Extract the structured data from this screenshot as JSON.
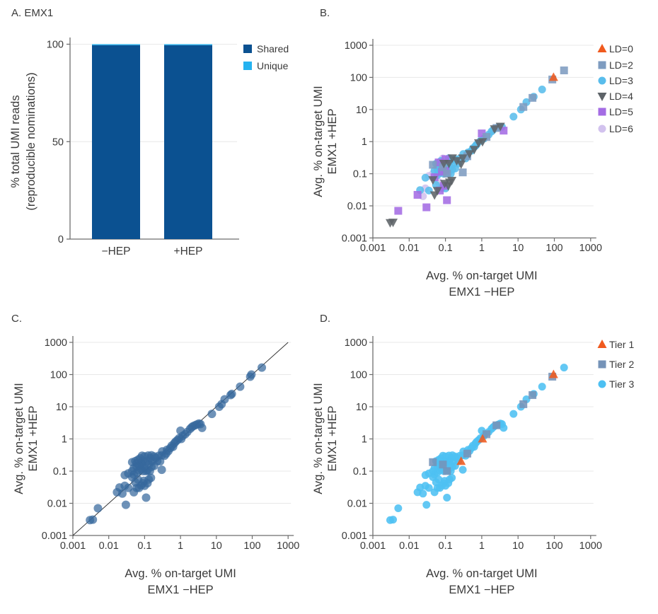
{
  "figure": {
    "panel_count": 4
  },
  "colors": {
    "shared": "#0b5191",
    "unique": "#25b2f0",
    "ld0": "#f05a1e",
    "ld2": "#7e9cc0",
    "ld3": "#59bdec",
    "ld4": "#5d6368",
    "ld5": "#a46ce4",
    "ld6": "#d2c2ee",
    "tier1": "#f05a1e",
    "tier2": "#7593b8",
    "tier3": "#4dc0f2",
    "panel_c_point": "#36689d",
    "axis": "#6e6e6e",
    "grid": "#e8e8e8",
    "text": "#3a3a3a"
  },
  "chart_data": [
    {
      "id": "A",
      "type": "bar",
      "title": "A. EMX1",
      "ylabel_lines": [
        "% total UMI reads",
        "(reproducible nominations)"
      ],
      "yticks": [
        0,
        50,
        100
      ],
      "ytick_labels": [
        "0",
        "50",
        "100"
      ],
      "ylim": [
        0,
        100
      ],
      "categories": [
        "−HEP",
        "+HEP"
      ],
      "stacked": true,
      "series": [
        {
          "name": "Shared",
          "color": "#0b5191",
          "values": [
            99.5,
            99.5
          ]
        },
        {
          "name": "Unique",
          "color": "#25b2f0",
          "values": [
            0.5,
            0.5
          ]
        }
      ],
      "legend": [
        {
          "label": "Shared",
          "key": "shared",
          "shape": "square",
          "color": "#0b5191"
        },
        {
          "label": "Unique",
          "key": "unique",
          "shape": "square",
          "color": "#25b2f0"
        }
      ]
    },
    {
      "id": "B",
      "type": "scatter",
      "title": "B.",
      "xlabel_lines": [
        "Avg. % on-target UMI",
        "EMX1 −HEP"
      ],
      "ylabel_lines": [
        "Avg. % on-target UMI",
        "EMX1 +HEP"
      ],
      "xscale": "log",
      "yscale": "log",
      "xlim": [
        0.001,
        1000
      ],
      "ylim": [
        0.001,
        1000
      ],
      "tick_labels": [
        "0.001",
        "0.01",
        "0.1",
        "1",
        "10",
        "100",
        "1000"
      ],
      "grid": "horizontal",
      "color_by": "ld",
      "marker_opacity": 0.88,
      "marker_map": {
        "0": {
          "shape": "triangle-up",
          "color": "#f05a1e"
        },
        "2": {
          "shape": "square",
          "color": "#7e9cc0"
        },
        "3": {
          "shape": "circle",
          "color": "#59bdec"
        },
        "4": {
          "shape": "triangle-down",
          "color": "#5d6368"
        },
        "5": {
          "shape": "square",
          "color": "#a46ce4"
        },
        "6": {
          "shape": "circle",
          "color": "#d2c2ee"
        }
      },
      "draw_order": [
        "6",
        "3",
        "5",
        "2",
        "4",
        "0"
      ],
      "legend": [
        {
          "label": "LD=0",
          "key": "0"
        },
        {
          "label": "LD=2",
          "key": "2"
        },
        {
          "label": "LD=3",
          "key": "3"
        },
        {
          "label": "LD=4",
          "key": "4"
        },
        {
          "label": "LD=5",
          "key": "5"
        },
        {
          "label": "LD=6",
          "key": "6"
        }
      ],
      "legend_position": "right",
      "identity_line": false
    },
    {
      "id": "C",
      "type": "scatter",
      "title": "C.",
      "xlabel_lines": [
        "Avg. % on-target UMI",
        "EMX1 −HEP"
      ],
      "ylabel_lines": [
        "Avg. % on-target UMI",
        "EMX1 +HEP"
      ],
      "xscale": "log",
      "yscale": "log",
      "xlim": [
        0.001,
        1000
      ],
      "ylim": [
        0.001,
        1000
      ],
      "tick_labels": [
        "0.001",
        "0.01",
        "0.1",
        "1",
        "10",
        "100",
        "1000"
      ],
      "grid": "horizontal",
      "color_by": null,
      "point_style": {
        "shape": "circle",
        "color": "#36689d",
        "opacity": 0.72
      },
      "identity_line": true
    },
    {
      "id": "D",
      "type": "scatter",
      "title": "D.",
      "xlabel_lines": [
        "Avg. % on-target UMI",
        "EMX1 −HEP"
      ],
      "ylabel_lines": [
        "Avg. % on-target UMI",
        "EMX1 +HEP"
      ],
      "xscale": "log",
      "yscale": "log",
      "xlim": [
        0.001,
        1000
      ],
      "ylim": [
        0.001,
        1000
      ],
      "tick_labels": [
        "0.001",
        "0.01",
        "0.1",
        "1",
        "10",
        "100",
        "1000"
      ],
      "grid": "horizontal",
      "color_by": "tier",
      "marker_opacity": 0.88,
      "marker_map": {
        "1": {
          "shape": "triangle-up",
          "color": "#f05a1e"
        },
        "2": {
          "shape": "square",
          "color": "#7593b8"
        },
        "3": {
          "shape": "circle",
          "color": "#4dc0f2"
        }
      },
      "draw_order": [
        "3",
        "2",
        "1"
      ],
      "legend": [
        {
          "label": "Tier 1",
          "key": "1"
        },
        {
          "label": "Tier 2",
          "key": "2"
        },
        {
          "label": "Tier 3",
          "key": "3"
        }
      ],
      "legend_position": "right",
      "identity_line": false
    }
  ],
  "scatter_points_format": [
    "x",
    "y",
    "ld",
    "tier"
  ],
  "scatter_points": [
    [
      0.003,
      0.003,
      4,
      3
    ],
    [
      0.0036,
      0.0031,
      4,
      3
    ],
    [
      0.005,
      0.007,
      5,
      3
    ],
    [
      0.03,
      0.009,
      5,
      3
    ],
    [
      0.11,
      0.015,
      5,
      3
    ],
    [
      0.017,
      0.022,
      5,
      3
    ],
    [
      0.024,
      0.02,
      6,
      3
    ],
    [
      0.02,
      0.031,
      3,
      3
    ],
    [
      0.028,
      0.035,
      6,
      3
    ],
    [
      0.035,
      0.03,
      3,
      3
    ],
    [
      0.05,
      0.022,
      4,
      3
    ],
    [
      0.06,
      0.03,
      4,
      3
    ],
    [
      0.07,
      0.03,
      5,
      3
    ],
    [
      0.08,
      0.036,
      3,
      3
    ],
    [
      0.09,
      0.042,
      5,
      3
    ],
    [
      0.1,
      0.035,
      3,
      3
    ],
    [
      0.12,
      0.042,
      4,
      3
    ],
    [
      0.095,
      0.05,
      4,
      3
    ],
    [
      0.055,
      0.045,
      3,
      3
    ],
    [
      0.065,
      0.055,
      6,
      3
    ],
    [
      0.13,
      0.055,
      4,
      3
    ],
    [
      0.15,
      0.062,
      4,
      3
    ],
    [
      0.045,
      0.065,
      4,
      3
    ],
    [
      0.05,
      0.078,
      5,
      3
    ],
    [
      0.028,
      0.075,
      3,
      3
    ],
    [
      0.035,
      0.085,
      6,
      3
    ],
    [
      0.06,
      0.09,
      3,
      3
    ],
    [
      0.07,
      0.105,
      3,
      3
    ],
    [
      0.045,
      0.1,
      6,
      3
    ],
    [
      0.05,
      0.125,
      3,
      3
    ],
    [
      0.08,
      0.115,
      5,
      3
    ],
    [
      0.09,
      0.1,
      3,
      3
    ],
    [
      0.11,
      0.1,
      2,
      2
    ],
    [
      0.12,
      0.105,
      3,
      3
    ],
    [
      0.14,
      0.1,
      3,
      3
    ],
    [
      0.1,
      0.125,
      5,
      3
    ],
    [
      0.045,
      0.19,
      2,
      2
    ],
    [
      0.06,
      0.175,
      3,
      3
    ],
    [
      0.085,
      0.16,
      2,
      2
    ],
    [
      0.06,
      0.14,
      3,
      3
    ],
    [
      0.07,
      0.15,
      6,
      3
    ],
    [
      0.08,
      0.175,
      3,
      3
    ],
    [
      0.055,
      0.205,
      3,
      3
    ],
    [
      0.065,
      0.225,
      5,
      3
    ],
    [
      0.075,
      0.25,
      3,
      3
    ],
    [
      0.09,
      0.21,
      4,
      3
    ],
    [
      0.105,
      0.185,
      3,
      3
    ],
    [
      0.085,
      0.3,
      6,
      3
    ],
    [
      0.1,
      0.285,
      5,
      3
    ],
    [
      0.125,
      0.21,
      4,
      3
    ],
    [
      0.135,
      0.165,
      3,
      3
    ],
    [
      0.155,
      0.135,
      3,
      3
    ],
    [
      0.185,
      0.145,
      3,
      3
    ],
    [
      0.165,
      0.205,
      3,
      3
    ],
    [
      0.145,
      0.255,
      3,
      3
    ],
    [
      0.125,
      0.305,
      3,
      3
    ],
    [
      0.155,
      0.31,
      4,
      3
    ],
    [
      0.185,
      0.285,
      3,
      3
    ],
    [
      0.205,
      0.255,
      4,
      3
    ],
    [
      0.225,
      0.205,
      3,
      3
    ],
    [
      0.3,
      0.11,
      2,
      3
    ],
    [
      0.27,
      0.2,
      4,
      1
    ],
    [
      0.25,
      0.3,
      3,
      3
    ],
    [
      0.3,
      0.31,
      4,
      3
    ],
    [
      0.36,
      0.3,
      3,
      3
    ],
    [
      0.31,
      0.41,
      3,
      3
    ],
    [
      0.4,
      0.35,
      2,
      2
    ],
    [
      0.42,
      0.46,
      3,
      3
    ],
    [
      0.46,
      0.42,
      4,
      3
    ],
    [
      0.52,
      0.52,
      3,
      3
    ],
    [
      0.57,
      0.62,
      3,
      3
    ],
    [
      0.62,
      0.57,
      4,
      3
    ],
    [
      0.67,
      0.73,
      3,
      3
    ],
    [
      0.73,
      0.82,
      3,
      3
    ],
    [
      0.82,
      0.92,
      4,
      3
    ],
    [
      0.92,
      1.05,
      3,
      3
    ],
    [
      1.05,
      1.0,
      4,
      1
    ],
    [
      1.15,
      1.25,
      3,
      3
    ],
    [
      1.35,
      1.4,
      2,
      2
    ],
    [
      1.0,
      1.8,
      5,
      3
    ],
    [
      1.55,
      1.65,
      3,
      3
    ],
    [
      1.85,
      2.05,
      3,
      3
    ],
    [
      2.05,
      2.3,
      3,
      3
    ],
    [
      2.25,
      2.5,
      4,
      3
    ],
    [
      2.55,
      2.65,
      2,
      2
    ],
    [
      2.85,
      2.8,
      3,
      3
    ],
    [
      3.25,
      3.0,
      4,
      3
    ],
    [
      4.0,
      2.2,
      5,
      3
    ],
    [
      3.6,
      2.9,
      3,
      3
    ],
    [
      7.5,
      6.0,
      3,
      3
    ],
    [
      12,
      10,
      3,
      3
    ],
    [
      14,
      12,
      2,
      2
    ],
    [
      17,
      17,
      3,
      3
    ],
    [
      25,
      23,
      2,
      2
    ],
    [
      27,
      25,
      3,
      3
    ],
    [
      46,
      42,
      3,
      3
    ],
    [
      95,
      100,
      0,
      1
    ],
    [
      88,
      86,
      2,
      2
    ],
    [
      185,
      165,
      2,
      3
    ]
  ]
}
